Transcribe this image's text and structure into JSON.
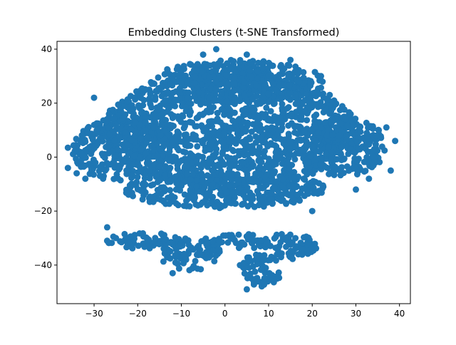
{
  "chart_data": {
    "type": "scatter",
    "title": "Embedding Clusters (t-SNE Transformed)",
    "xlabel": "",
    "ylabel": "",
    "xlim": [
      -38.5,
      42.5
    ],
    "ylim": [
      -54.3,
      42.9
    ],
    "xticks": [
      -30,
      -20,
      -10,
      0,
      10,
      20,
      30,
      40
    ],
    "yticks": [
      -40,
      -20,
      0,
      20,
      40
    ],
    "grid": false,
    "legend": "none",
    "marker_color": "#1f77b4",
    "regions": [
      {
        "cx": 1,
        "cy": 10,
        "rx": 29,
        "ry": 22
      },
      {
        "cx": -24,
        "cy": 3,
        "rx": 11,
        "ry": 12
      },
      {
        "cx": 27,
        "cy": 4,
        "rx": 10,
        "ry": 11
      },
      {
        "cx": 3,
        "cy": 28,
        "rx": 20,
        "ry": 8
      },
      {
        "cx": 0,
        "cy": -12,
        "rx": 23,
        "ry": 7
      },
      {
        "cx": -18,
        "cy": -31,
        "rx": 9,
        "ry": 3
      },
      {
        "cx": -8,
        "cy": -36,
        "rx": 7,
        "ry": 6
      },
      {
        "cx": 3,
        "cy": -31,
        "rx": 8,
        "ry": 3
      },
      {
        "cx": 8,
        "cy": -42,
        "rx": 5,
        "ry": 6
      },
      {
        "cx": 15,
        "cy": -33,
        "rx": 6,
        "ry": 5
      }
    ],
    "outliers": [
      [
        -36,
        3.5
      ],
      [
        -36,
        -4
      ],
      [
        -34,
        -6
      ],
      [
        -32,
        -8
      ],
      [
        -30,
        22
      ],
      [
        -27,
        -26
      ],
      [
        -27,
        -31
      ],
      [
        -25,
        -30
      ],
      [
        -5,
        38
      ],
      [
        -2,
        40
      ],
      [
        5,
        38
      ],
      [
        15,
        36
      ],
      [
        22,
        30
      ],
      [
        30,
        -12
      ],
      [
        33,
        -8
      ],
      [
        37,
        11
      ],
      [
        38,
        -5
      ],
      [
        39,
        6
      ],
      [
        20,
        -20
      ],
      [
        5,
        -49
      ],
      [
        9,
        -47
      ],
      [
        -12,
        -43
      ]
    ]
  }
}
